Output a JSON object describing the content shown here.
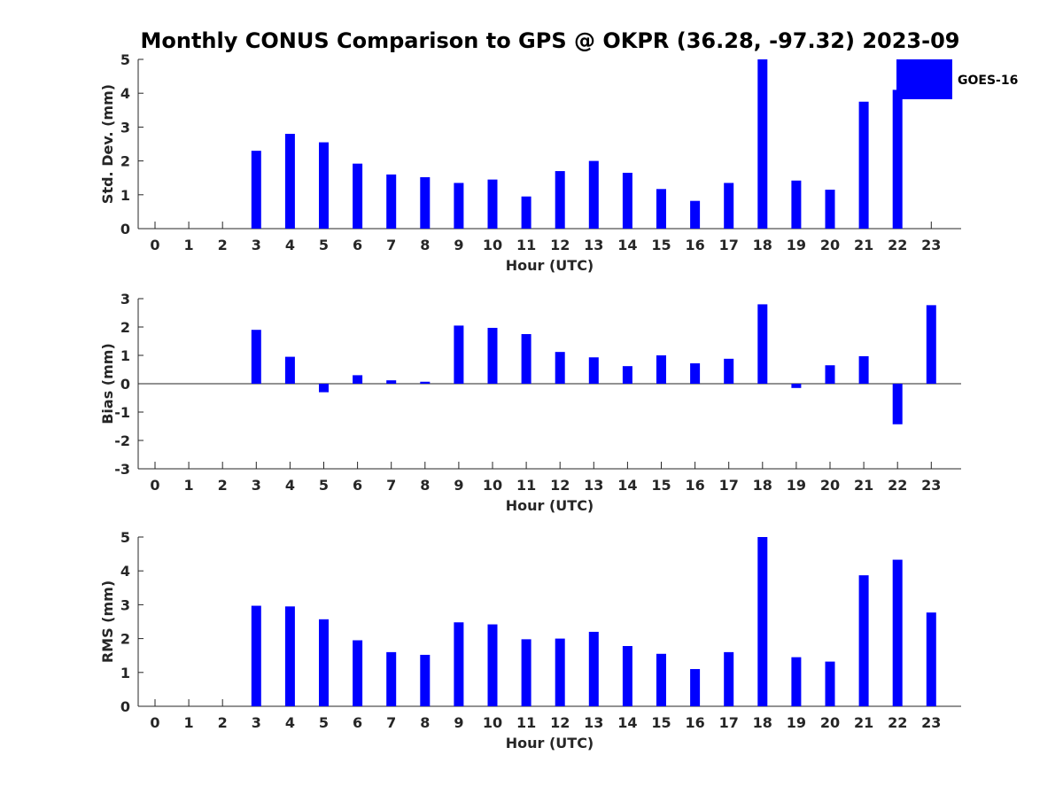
{
  "colors": {
    "bar": "#0000ff",
    "axis": "#262626",
    "background": "#ffffff"
  },
  "legend_icon": "filled-blue-rectangle",
  "chart_data": {
    "type": "bar",
    "title": "Monthly CONUS Comparison to GPS @ OKPR (36.28, -97.32) 2023-09",
    "legend": {
      "entries": [
        "GOES-16"
      ],
      "placement": "top-right"
    },
    "categories": [
      "0",
      "1",
      "2",
      "3",
      "4",
      "5",
      "6",
      "7",
      "8",
      "9",
      "10",
      "11",
      "12",
      "13",
      "14",
      "15",
      "16",
      "17",
      "18",
      "19",
      "20",
      "21",
      "22",
      "23"
    ],
    "panels": [
      {
        "name": "std-dev",
        "ylabel": "Std. Dev. (mm)",
        "xlabel": "Hour (UTC)",
        "ylim": [
          0,
          5
        ],
        "yticks": [
          "0",
          "1",
          "2",
          "3",
          "4",
          "5"
        ],
        "values": [
          null,
          null,
          null,
          2.3,
          2.8,
          2.55,
          1.92,
          1.6,
          1.52,
          1.35,
          1.45,
          0.95,
          1.7,
          2.0,
          1.65,
          1.17,
          0.82,
          1.35,
          5.0,
          1.42,
          1.15,
          3.75,
          4.1,
          null
        ]
      },
      {
        "name": "bias",
        "ylabel": "Bias (mm)",
        "xlabel": "Hour (UTC)",
        "ylim": [
          -3,
          3
        ],
        "yticks": [
          "-3",
          "-2",
          "-1",
          "0",
          "1",
          "2",
          "3"
        ],
        "zero_line": true,
        "values": [
          null,
          null,
          null,
          1.9,
          0.95,
          -0.3,
          0.3,
          0.12,
          0.07,
          2.05,
          1.97,
          1.75,
          1.12,
          0.93,
          0.62,
          1.0,
          0.72,
          0.88,
          2.8,
          -0.15,
          0.65,
          0.97,
          -1.43,
          2.77
        ]
      },
      {
        "name": "rms",
        "ylabel": "RMS (mm)",
        "xlabel": "Hour (UTC)",
        "ylim": [
          0,
          5
        ],
        "yticks": [
          "0",
          "1",
          "2",
          "3",
          "4",
          "5"
        ],
        "values": [
          null,
          null,
          null,
          2.97,
          2.95,
          2.57,
          1.95,
          1.6,
          1.52,
          2.48,
          2.42,
          1.98,
          2.0,
          2.2,
          1.78,
          1.55,
          1.1,
          1.6,
          5.0,
          1.45,
          1.32,
          3.87,
          4.33,
          2.77
        ]
      }
    ]
  }
}
